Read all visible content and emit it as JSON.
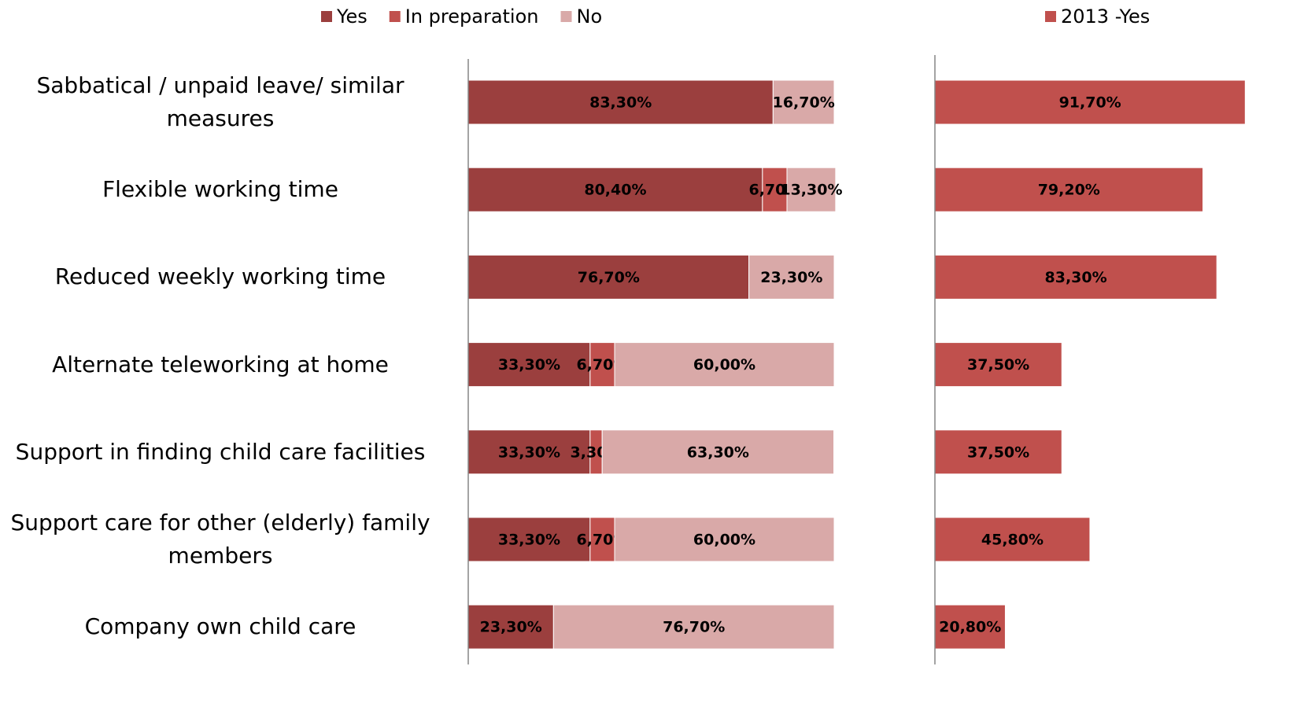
{
  "chart_data": [
    {
      "type": "bar",
      "orientation": "horizontal",
      "stacked": true,
      "legend": "top",
      "categories": [
        "Sabbatical / unpaid leave/ similar measures",
        "Flexible working time",
        "Reduced weekly working time",
        "Alternate teleworking at home",
        "Support in finding child care facilities",
        "Support care for other (elderly) family members",
        "Company own child care"
      ],
      "xlim": [
        0,
        100
      ],
      "series": [
        {
          "name": "Yes",
          "color": "#9b3f3e",
          "values": [
            83.3,
            80.4,
            76.7,
            33.3,
            33.3,
            33.3,
            23.3
          ],
          "value_labels": [
            "83,30%",
            "80,40%",
            "76,70%",
            "33,30%",
            "33,30%",
            "33,30%",
            "23,30%"
          ]
        },
        {
          "name": "In preparation",
          "color": "#c0504d",
          "values": [
            null,
            6.7,
            null,
            6.7,
            3.3,
            6.7,
            null
          ],
          "value_labels": [
            null,
            "6,70%",
            null,
            "6,70%",
            "3,30%",
            "6,70%",
            null
          ]
        },
        {
          "name": "No",
          "color": "#d9a9a8",
          "values": [
            16.7,
            13.3,
            23.3,
            60,
            63.3,
            60,
            76.7
          ],
          "value_labels": [
            "16,70%",
            "13,30%",
            "23,30%",
            "60,00%",
            "63,30%",
            "60,00%",
            "76,70%"
          ]
        }
      ]
    },
    {
      "type": "bar",
      "orientation": "horizontal",
      "legend": "top-right",
      "xlim": [
        0,
        100
      ],
      "series": [
        {
          "name": "2013 -Yes",
          "color": "#c0504d",
          "values": [
            91.7,
            79.2,
            83.3,
            37.5,
            37.5,
            45.8,
            20.8
          ],
          "value_labels": [
            "91,70%",
            "79,20%",
            "83,30%",
            "37,50%",
            "37,50%",
            "45,80%",
            "20,80%"
          ]
        }
      ]
    }
  ]
}
